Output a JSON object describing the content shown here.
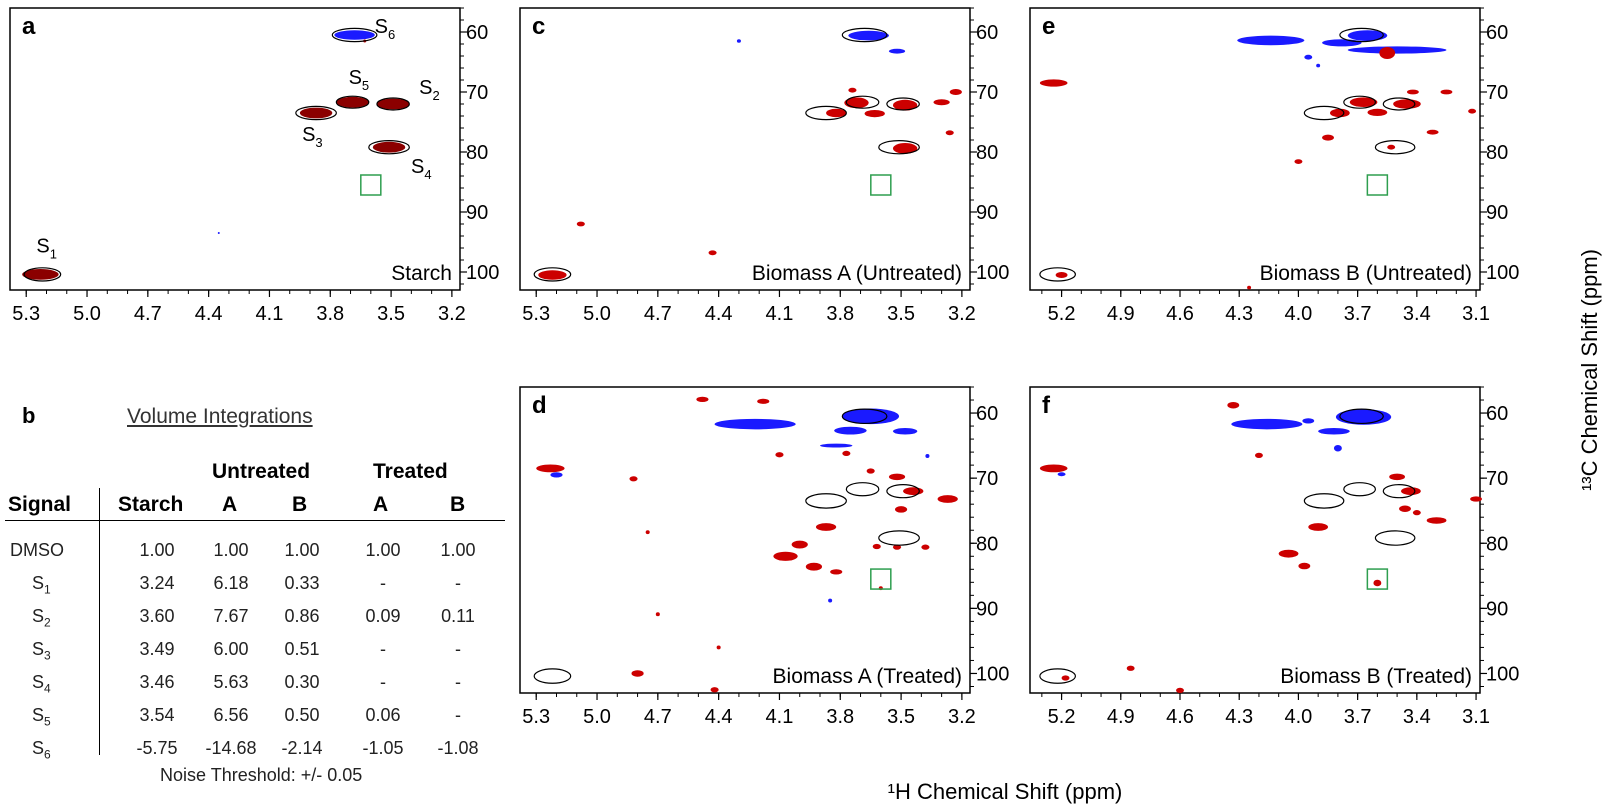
{
  "colors": {
    "positive": "#cc0000",
    "positive_dark": "#8b0000",
    "negative": "#1a1aff",
    "roi_box": "#2e9e4f",
    "ellipse": "#000000"
  },
  "x_axis_label": "¹H Chemical Shift (ppm)",
  "y_axis_label": "¹³C Chemical Shift (ppm)",
  "chart_data": [
    {
      "type": "scatter",
      "panel": "a",
      "title": "Starch",
      "x_ticks": [
        "5.3",
        "5.0",
        "4.7",
        "4.4",
        "4.1",
        "3.8",
        "3.5",
        "3.2"
      ],
      "y_ticks": [
        "60",
        "70",
        "80",
        "90",
        "100"
      ],
      "xlim": [
        5.38,
        3.16
      ],
      "ylim": [
        56,
        103
      ],
      "signals": [
        {
          "label": "S",
          "sub": "6",
          "x": 3.68,
          "y": 60.5,
          "sign": "negative"
        },
        {
          "label": "S",
          "sub": "5",
          "x": 3.69,
          "y": 71.7,
          "sign": "positive"
        },
        {
          "label": "S",
          "sub": "2",
          "x": 3.49,
          "y": 72.0,
          "sign": "positive"
        },
        {
          "label": "S",
          "sub": "3",
          "x": 3.87,
          "y": 73.5,
          "sign": "positive"
        },
        {
          "label": "S",
          "sub": "4",
          "x": 3.51,
          "y": 79.2,
          "sign": "positive"
        },
        {
          "label": "S",
          "sub": "1",
          "x": 5.23,
          "y": 100.4,
          "sign": "positive"
        }
      ],
      "roi": {
        "x": 3.6,
        "y": 85.5
      }
    },
    {
      "type": "scatter",
      "panel": "c",
      "title": "Biomass A (Untreated)",
      "x_ticks": [
        "5.3",
        "5.0",
        "4.7",
        "4.4",
        "4.1",
        "3.8",
        "3.5",
        "3.2"
      ],
      "y_ticks": [
        "60",
        "70",
        "80",
        "90",
        "100"
      ],
      "xlim": [
        5.38,
        3.16
      ],
      "ylim": [
        56,
        103
      ],
      "roi": {
        "x": 3.6,
        "y": 85.5
      }
    },
    {
      "type": "scatter",
      "panel": "e",
      "title": "Biomass B (Untreated)",
      "x_ticks": [
        "5.2",
        "4.9",
        "4.6",
        "4.3",
        "4.0",
        "3.7",
        "3.4",
        "3.1"
      ],
      "y_ticks": [
        "60",
        "70",
        "80",
        "90",
        "100"
      ],
      "xlim": [
        5.36,
        3.08
      ],
      "ylim": [
        56,
        103
      ],
      "roi": {
        "x": 3.6,
        "y": 85.5
      }
    },
    {
      "type": "scatter",
      "panel": "d",
      "title": "Biomass A (Treated)",
      "x_ticks": [
        "5.3",
        "5.0",
        "4.7",
        "4.4",
        "4.1",
        "3.8",
        "3.5",
        "3.2"
      ],
      "y_ticks": [
        "60",
        "70",
        "80",
        "90",
        "100"
      ],
      "xlim": [
        5.38,
        3.16
      ],
      "ylim": [
        56,
        103
      ],
      "roi": {
        "x": 3.6,
        "y": 85.5
      }
    },
    {
      "type": "scatter",
      "panel": "f",
      "title": "Biomass B (Treated)",
      "x_ticks": [
        "5.2",
        "4.9",
        "4.6",
        "4.3",
        "4.0",
        "3.7",
        "3.4",
        "3.1"
      ],
      "y_ticks": [
        "60",
        "70",
        "80",
        "90",
        "100"
      ],
      "xlim": [
        5.36,
        3.08
      ],
      "ylim": [
        56,
        103
      ],
      "roi": {
        "x": 3.6,
        "y": 85.5
      }
    }
  ],
  "table": {
    "letter": "b",
    "title": "Volume Integrations",
    "group_untreated": "Untreated",
    "group_treated": "Treated",
    "headers": [
      "Signal",
      "Starch",
      "A",
      "B",
      "A",
      "B"
    ],
    "rows": [
      {
        "signal": "DMSO",
        "sub": "",
        "values": [
          "1.00",
          "1.00",
          "1.00",
          "1.00",
          "1.00"
        ]
      },
      {
        "signal": "S",
        "sub": "1",
        "values": [
          "3.24",
          "6.18",
          "0.33",
          "-",
          "-"
        ]
      },
      {
        "signal": "S",
        "sub": "2",
        "values": [
          "3.60",
          "7.67",
          "0.86",
          "0.09",
          "0.11"
        ]
      },
      {
        "signal": "S",
        "sub": "3",
        "values": [
          "3.49",
          "6.00",
          "0.51",
          "-",
          "-"
        ]
      },
      {
        "signal": "S",
        "sub": "4",
        "values": [
          "3.46",
          "5.63",
          "0.30",
          "-",
          "-"
        ]
      },
      {
        "signal": "S",
        "sub": "5",
        "values": [
          "3.54",
          "6.56",
          "0.50",
          "0.06",
          "-"
        ]
      },
      {
        "signal": "S",
        "sub": "6",
        "values": [
          "-5.75",
          "-14.68",
          "-2.14",
          "-1.05",
          "-1.08"
        ]
      }
    ],
    "noise": "Noise Threshold: +/- 0.05"
  }
}
